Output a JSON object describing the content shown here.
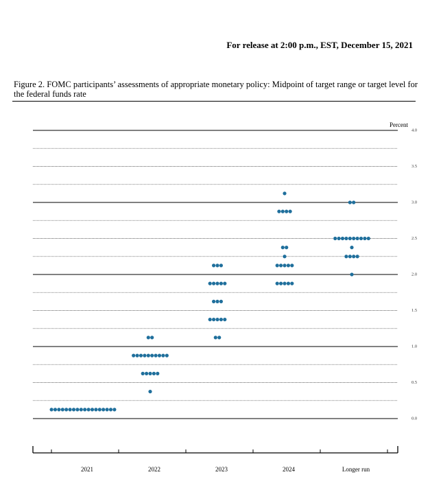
{
  "header": {
    "release": "For release at 2:00 p.m., EST, December 15, 2021"
  },
  "chart_data": {
    "type": "dot",
    "title": "Figure 2.  FOMC participants’ assessments of appropriate monetary policy: Midpoint of target range or target level for the federal funds rate",
    "y_label": "Percent",
    "color": "#1f6f9c",
    "categories": [
      "2021",
      "2022",
      "2023",
      "2024",
      "Longer run"
    ],
    "values": [
      [
        0.125,
        0.125,
        0.125,
        0.125,
        0.125,
        0.125,
        0.125,
        0.125,
        0.125,
        0.125,
        0.125,
        0.125,
        0.125,
        0.125,
        0.125,
        0.125,
        0.125,
        0.125
      ],
      [
        1.125,
        1.125,
        0.875,
        0.875,
        0.875,
        0.875,
        0.875,
        0.875,
        0.875,
        0.875,
        0.875,
        0.875,
        0.625,
        0.625,
        0.625,
        0.625,
        0.625,
        0.375
      ],
      [
        2.125,
        2.125,
        2.125,
        1.875,
        1.875,
        1.875,
        1.875,
        1.875,
        1.625,
        1.625,
        1.625,
        1.375,
        1.375,
        1.375,
        1.375,
        1.375,
        1.125,
        1.125
      ],
      [
        3.125,
        2.875,
        2.875,
        2.875,
        2.875,
        2.375,
        2.375,
        2.25,
        2.125,
        2.125,
        2.125,
        2.125,
        2.125,
        1.875,
        1.875,
        1.875,
        1.875,
        1.875
      ],
      [
        3.0,
        3.0,
        2.5,
        2.5,
        2.5,
        2.5,
        2.5,
        2.5,
        2.5,
        2.5,
        2.5,
        2.5,
        2.375,
        2.25,
        2.25,
        2.25,
        2.25,
        2.0
      ]
    ],
    "ylim": [
      0,
      4
    ],
    "yticks": [
      {
        "value": 0,
        "label": "0.0"
      },
      {
        "value": 0.5,
        "label": "0.5"
      },
      {
        "value": 1,
        "label": "1.0"
      },
      {
        "value": 1.5,
        "label": "1.5"
      },
      {
        "value": 2,
        "label": "2.0"
      },
      {
        "value": 2.5,
        "label": "2.5"
      },
      {
        "value": 3,
        "label": "3.0"
      },
      {
        "value": 3.5,
        "label": "3.5"
      },
      {
        "value": 4,
        "label": "4.0"
      }
    ],
    "minor_grid_step": 0.25
  }
}
